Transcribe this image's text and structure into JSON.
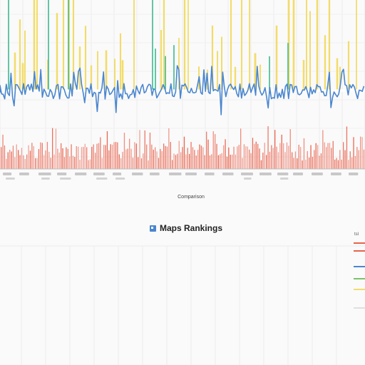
{
  "chart_data": {
    "type": "bar",
    "panels": [
      {
        "name": "yellow",
        "color": "#f2dc6b",
        "style": "spikes"
      },
      {
        "name": "teal",
        "color": "#3dba8e",
        "style": "spikes"
      },
      {
        "name": "blue",
        "color": "#4a86cf",
        "style": "line"
      },
      {
        "name": "red",
        "color": "#e8624c",
        "style": "bars"
      }
    ],
    "x_axis_caption": "Comparison",
    "legend": {
      "placement": "right",
      "header": "tsl",
      "swatches": [
        "#e8624c",
        "#e8624c",
        "#4a86cf",
        "#7ac36a",
        "#f2dc6b"
      ]
    },
    "grid": true
  },
  "lower_chart": {
    "title": "Maps Rankings",
    "icon": "square-icon",
    "accent": "#4a86cf"
  }
}
